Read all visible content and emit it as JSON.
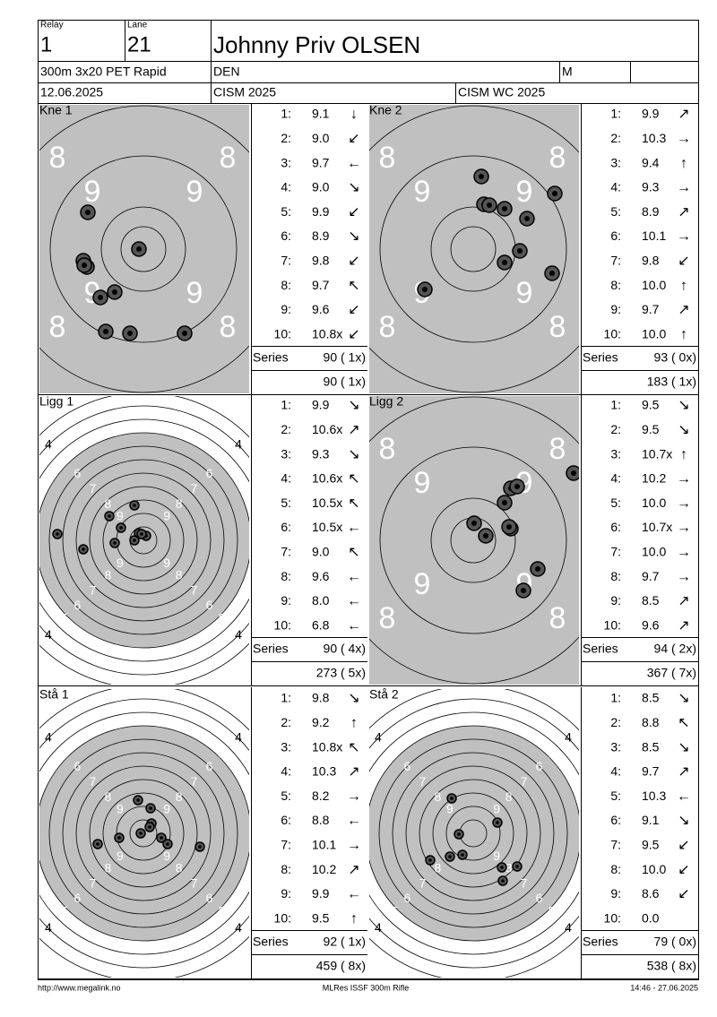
{
  "header": {
    "relay_label": "Relay",
    "relay": "1",
    "lane_label": "Lane",
    "lane": "21",
    "name": "Johnny Priv OLSEN",
    "event": "300m 3x20 PET Rapid",
    "nation": "DEN",
    "gender": "M",
    "date": "12.06.2025",
    "competition": "CISM 2025",
    "match": "CISM WC 2025"
  },
  "panels": [
    {
      "title": "Kne 1",
      "ring_labels": [
        "8",
        "9"
      ],
      "series_label": "Series",
      "series": "90 ( 1x)",
      "total": "90 ( 1x)",
      "shots": [
        {
          "n": "1:",
          "value": "9.1",
          "dir": "↓"
        },
        {
          "n": "2:",
          "value": "9.0",
          "dir": "↙"
        },
        {
          "n": "3:",
          "value": "9.7",
          "dir": "←"
        },
        {
          "n": "4:",
          "value": "9.0",
          "dir": "↘"
        },
        {
          "n": "5:",
          "value": "9.9",
          "dir": "↙"
        },
        {
          "n": "6:",
          "value": "8.9",
          "dir": "↘"
        },
        {
          "n": "7:",
          "value": "9.8",
          "dir": "↙"
        },
        {
          "n": "8:",
          "value": "9.7",
          "dir": "↖"
        },
        {
          "n": "9:",
          "value": "9.6",
          "dir": "↙"
        },
        {
          "n": "10:",
          "value": "10.8x",
          "dir": "↙"
        }
      ]
    },
    {
      "title": "Kne 2",
      "ring_labels": [
        "8",
        "9"
      ],
      "series_label": "Series",
      "series": "93 ( 0x)",
      "total": "183 ( 1x)",
      "shots": [
        {
          "n": "1:",
          "value": "9.9",
          "dir": "↗"
        },
        {
          "n": "2:",
          "value": "10.3",
          "dir": "→"
        },
        {
          "n": "3:",
          "value": "9.4",
          "dir": "↑"
        },
        {
          "n": "4:",
          "value": "9.3",
          "dir": "→"
        },
        {
          "n": "5:",
          "value": "8.9",
          "dir": "↗"
        },
        {
          "n": "6:",
          "value": "10.1",
          "dir": "→"
        },
        {
          "n": "7:",
          "value": "9.8",
          "dir": "↙"
        },
        {
          "n": "8:",
          "value": "10.0",
          "dir": "↑"
        },
        {
          "n": "9:",
          "value": "9.7",
          "dir": "↗"
        },
        {
          "n": "10:",
          "value": "10.0",
          "dir": "↑"
        }
      ]
    },
    {
      "title": "Ligg 1",
      "ring_labels": [
        "4",
        "5",
        "6",
        "7",
        "8",
        "9"
      ],
      "series_label": "Series",
      "series": "90 ( 4x)",
      "total": "273 ( 5x)",
      "shots": [
        {
          "n": "1:",
          "value": "9.9",
          "dir": "↘"
        },
        {
          "n": "2:",
          "value": "10.6x",
          "dir": "↗"
        },
        {
          "n": "3:",
          "value": "9.3",
          "dir": "↘"
        },
        {
          "n": "4:",
          "value": "10.6x",
          "dir": "↖"
        },
        {
          "n": "5:",
          "value": "10.5x",
          "dir": "↖"
        },
        {
          "n": "6:",
          "value": "10.5x",
          "dir": "←"
        },
        {
          "n": "7:",
          "value": "9.0",
          "dir": "↖"
        },
        {
          "n": "8:",
          "value": "9.6",
          "dir": "←"
        },
        {
          "n": "9:",
          "value": "8.0",
          "dir": "←"
        },
        {
          "n": "10:",
          "value": "6.8",
          "dir": "←"
        }
      ]
    },
    {
      "title": "Ligg 2",
      "ring_labels": [
        "8",
        "9"
      ],
      "series_label": "Series",
      "series": "94 ( 2x)",
      "total": "367 ( 7x)",
      "shots": [
        {
          "n": "1:",
          "value": "9.5",
          "dir": "↘"
        },
        {
          "n": "2:",
          "value": "9.5",
          "dir": "↘"
        },
        {
          "n": "3:",
          "value": "10.7x",
          "dir": "↑"
        },
        {
          "n": "4:",
          "value": "10.2",
          "dir": "→"
        },
        {
          "n": "5:",
          "value": "10.0",
          "dir": "→"
        },
        {
          "n": "6:",
          "value": "10.7x",
          "dir": "→"
        },
        {
          "n": "7:",
          "value": "10.0",
          "dir": "→"
        },
        {
          "n": "8:",
          "value": "9.7",
          "dir": "→"
        },
        {
          "n": "9:",
          "value": "8.5",
          "dir": "↗"
        },
        {
          "n": "10:",
          "value": "9.6",
          "dir": "↗"
        }
      ]
    },
    {
      "title": "Stå 1",
      "ring_labels": [
        "4",
        "5",
        "6",
        "7",
        "8",
        "9"
      ],
      "series_label": "Series",
      "series": "92 ( 1x)",
      "total": "459 ( 8x)",
      "shots": [
        {
          "n": "1:",
          "value": "9.8",
          "dir": "↘"
        },
        {
          "n": "2:",
          "value": "9.2",
          "dir": "↑"
        },
        {
          "n": "3:",
          "value": "10.8x",
          "dir": "↖"
        },
        {
          "n": "4:",
          "value": "10.3",
          "dir": "↗"
        },
        {
          "n": "5:",
          "value": "8.2",
          "dir": "→"
        },
        {
          "n": "6:",
          "value": "8.8",
          "dir": "←"
        },
        {
          "n": "7:",
          "value": "10.1",
          "dir": "→"
        },
        {
          "n": "8:",
          "value": "10.2",
          "dir": "↗"
        },
        {
          "n": "9:",
          "value": "9.9",
          "dir": "←"
        },
        {
          "n": "10:",
          "value": "9.5",
          "dir": "↑"
        }
      ]
    },
    {
      "title": "Stå 2",
      "ring_labels": [
        "4",
        "5",
        "6",
        "7",
        "8",
        "9"
      ],
      "series_label": "Series",
      "series": "79 ( 0x)",
      "total": "538 ( 8x)",
      "shots": [
        {
          "n": "1:",
          "value": "8.5",
          "dir": "↘"
        },
        {
          "n": "2:",
          "value": "8.8",
          "dir": "↖"
        },
        {
          "n": "3:",
          "value": "8.5",
          "dir": "↘"
        },
        {
          "n": "4:",
          "value": "9.7",
          "dir": "↗"
        },
        {
          "n": "5:",
          "value": "10.3",
          "dir": "←"
        },
        {
          "n": "6:",
          "value": "9.1",
          "dir": "↘"
        },
        {
          "n": "7:",
          "value": "9.5",
          "dir": "↙"
        },
        {
          "n": "8:",
          "value": "10.0",
          "dir": "↙"
        },
        {
          "n": "9:",
          "value": "8.6",
          "dir": "↙"
        },
        {
          "n": "10:",
          "value": "0.0",
          "dir": ""
        }
      ]
    }
  ],
  "footer": {
    "url": "http://www.megalink.no",
    "app": "MLRes ISSF 300m Rifle",
    "printed": "14:46 - 27.06.2025"
  }
}
